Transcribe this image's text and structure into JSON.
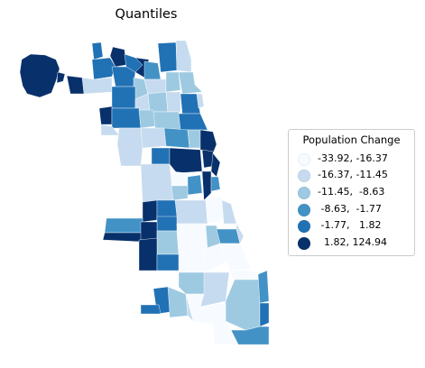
{
  "map": {
    "title": "Quantiles"
  },
  "legend": {
    "title": "Population Change",
    "items": [
      {
        "label": "-33.92, -16.37",
        "color": "#f7fbff"
      },
      {
        "label": "-16.37, -11.45",
        "color": "#c6dbef"
      },
      {
        "label": "-11.45,  -8.63",
        "color": "#9ecae1"
      },
      {
        "label": " -8.63,  -1.77",
        "color": "#4292c6"
      },
      {
        "label": " -1.77,   1.82",
        "color": "#2171b5"
      },
      {
        "label": "  1.82, 124.94",
        "color": "#08306b"
      }
    ]
  }
}
